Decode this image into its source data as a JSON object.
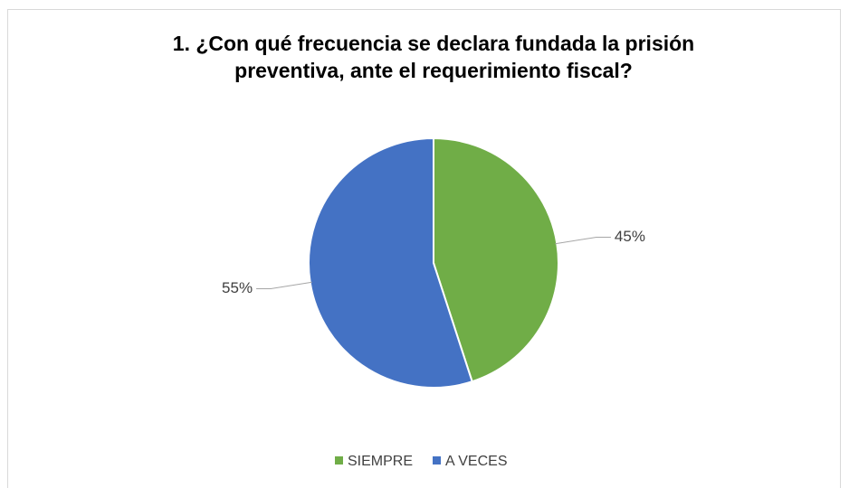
{
  "chart_data": {
    "type": "pie",
    "title": [
      "1. ¿Con qué frecuencia se declara fundada la prisión",
      "preventiva, ante el requerimiento fiscal?"
    ],
    "categories": [
      "SIEMPRE",
      "A VECES"
    ],
    "values": [
      45,
      55
    ],
    "value_labels": [
      "45%",
      "55%"
    ],
    "colors": [
      "#70ad47",
      "#4472c4"
    ],
    "legend": "bottom"
  }
}
